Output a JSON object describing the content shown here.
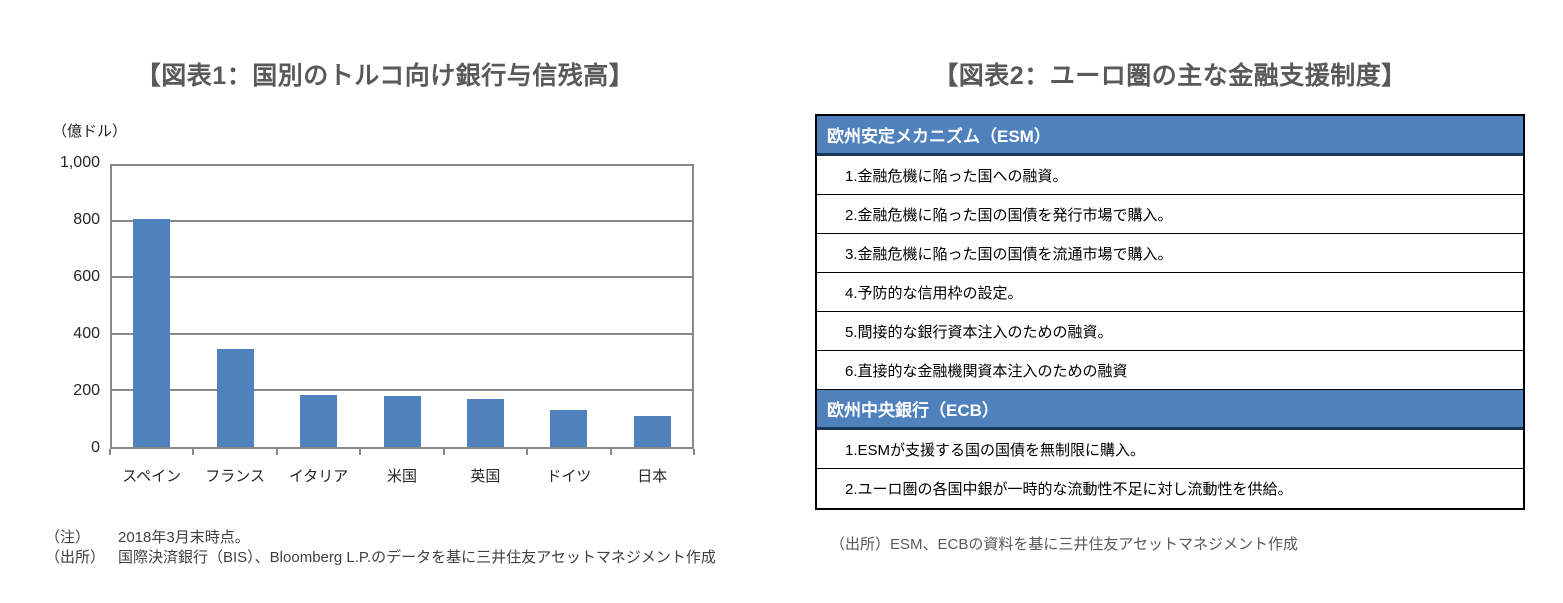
{
  "fig1": {
    "title": "【図表1：国別のトルコ向け銀行与信残高】",
    "unit_label": "（億ドル）",
    "notes": [
      {
        "label": "（注）",
        "text": "2018年3月末時点。"
      },
      {
        "label": "（出所）",
        "text": "国際決済銀行（BIS）、Bloomberg L.P.のデータを基に三井住友アセットマネジメント作成"
      }
    ]
  },
  "chart_data": {
    "type": "bar",
    "title": "【図表1：国別のトルコ向け銀行与信残高】",
    "unit": "億ドル",
    "categories": [
      "スペイン",
      "フランス",
      "イタリア",
      "米国",
      "英国",
      "ドイツ",
      "日本"
    ],
    "values": [
      810,
      350,
      185,
      180,
      170,
      130,
      110
    ],
    "ylim": [
      0,
      1000
    ],
    "ytick_interval": 200,
    "ytick_labels": [
      "0",
      "200",
      "400",
      "600",
      "800",
      "1,000"
    ],
    "grid": true,
    "legend": "none",
    "bar_color": "#4F81BD",
    "grid_color": "#898989"
  },
  "fig2": {
    "title": "【図表2：ユーロ圏の主な金融支援制度】",
    "table": {
      "sections": [
        {
          "header": "欧州安定メカニズム（ESM）",
          "rows": [
            "1.金融危機に陥った国への融資。",
            "2.金融危機に陥った国の国債を発行市場で購入。",
            "3.金融危機に陥った国の国債を流通市場で購入。",
            "4.予防的な信用枠の設定。",
            "5.間接的な銀行資本注入のための融資。",
            "6.直接的な金融機関資本注入のための融資"
          ]
        },
        {
          "header": "欧州中央銀行（ECB）",
          "rows": [
            "1.ESMが支援する国の国債を無制限に購入。",
            "2.ユーロ圏の各国中銀が一時的な流動性不足に対し流動性を供給。"
          ]
        }
      ]
    },
    "source": "（出所）ESM、ECBの資料を基に三井住友アセットマネジメント作成"
  },
  "colors": {
    "accent_blue": "#4F81BD",
    "header_border_dark": "#17375D",
    "title_gray": "#595959",
    "grid_gray": "#898989"
  }
}
